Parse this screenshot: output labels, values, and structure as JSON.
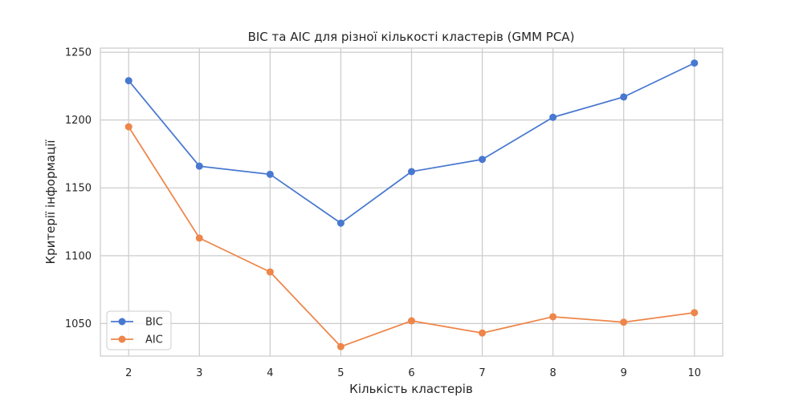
{
  "chart_data": {
    "type": "line",
    "title": "BIC та AIC для різної кількості кластерів (GMM PCA)",
    "xlabel": "Кількість кластерів",
    "ylabel": "Критерії інформації",
    "x": [
      2,
      3,
      4,
      5,
      6,
      7,
      8,
      9,
      10
    ],
    "xticks": [
      2,
      3,
      4,
      5,
      6,
      7,
      8,
      9,
      10
    ],
    "yticks": [
      1050,
      1100,
      1150,
      1200,
      1250
    ],
    "xlim": [
      1.6,
      10.4
    ],
    "ylim": [
      1026,
      1253
    ],
    "grid": true,
    "legend_position": "lower-left",
    "series": [
      {
        "name": "BIC",
        "color": "#4878d0",
        "values": [
          1229,
          1166,
          1160,
          1124,
          1162,
          1171,
          1202,
          1217,
          1242
        ]
      },
      {
        "name": "AIC",
        "color": "#ee854a",
        "values": [
          1195,
          1113,
          1088,
          1033,
          1052,
          1043,
          1055,
          1051,
          1058
        ]
      }
    ]
  }
}
